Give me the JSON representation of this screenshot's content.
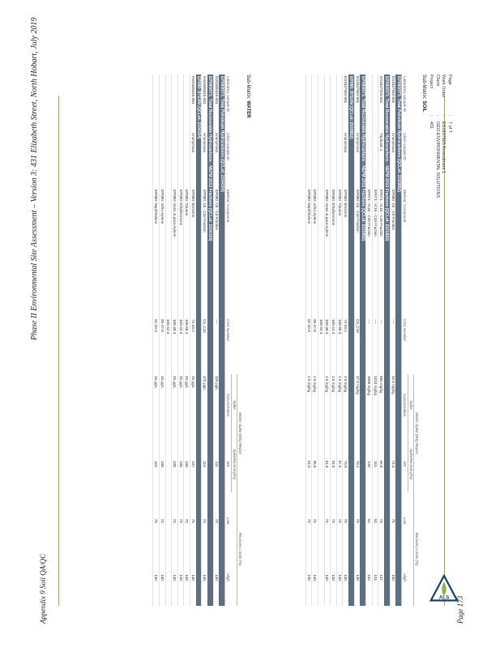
{
  "doc": {
    "header": "Phase II Environmental Site Assessment – Version 3: 431 Elizabeth Street, North Hobart, July 2019",
    "appendix": "Appendix 9 Soil QA/QC",
    "page_label": "Page 173"
  },
  "meta": [
    {
      "k": "Page",
      "v": "7 of 7"
    },
    {
      "k": "Work Order",
      "v": "ES1837926 Amendment 1"
    },
    {
      "k": "Client",
      "v": "GEO-ENVIRONMENTAL SOLUTIONS"
    },
    {
      "k": "Project",
      "v": "431"
    }
  ],
  "logo_text": "ALS",
  "soil": {
    "submatrix_label": "Sub-Matrix:",
    "submatrix_value": "SOIL",
    "head_top": {
      "ms": "Matrix Spike (MS) Report",
      "spike": "Spike",
      "sr": "SpikeRecovery(%)",
      "rl": "Recovery Limits (%)"
    },
    "head": [
      "Laboratory sample ID",
      "Client sample ID",
      "Method: Compound",
      "CAS Number",
      "Concentration",
      "MS",
      "Low",
      "High"
    ],
    "rows": [
      {
        "type": "group",
        "text": "EP080/071: Total Petroleum Hydrocarbons  (QCLot: 2103852)"
      },
      {
        "type": "row",
        "c": [
          "ES1837504-001",
          "Anonymous",
          "EP080: C6 - C9 Fraction",
          "----",
          "32.5 mg/kg",
          "74.3",
          "70",
          "130"
        ]
      },
      {
        "type": "group",
        "text": "EP080/071: Total Recoverable Hydrocarbons - NEPM 2013 Fractions  (QCLot: 2101822)"
      },
      {
        "type": "row",
        "c": [
          "ES1837926-001",
          "Triplicate 1",
          "EP071: >C10 - C16 Fraction",
          "----",
          "860 mg/kg",
          "94.8",
          "73",
          "137"
        ]
      },
      {
        "type": "row",
        "c": [
          "",
          "",
          "EP071: >C16 - C34 Fraction",
          "----",
          "3223 mg/kg",
          "115",
          "53",
          "131"
        ]
      },
      {
        "type": "row",
        "c": [
          "",
          "",
          "EP071: >C34 - C40 Fraction",
          "----",
          "1058 mg/kg",
          "128",
          "52",
          "132"
        ]
      },
      {
        "type": "group",
        "text": "EP080/071: Total Recoverable Hydrocarbons - NEPM 2013 Fractions  (QCLot: 2103852)"
      },
      {
        "type": "row",
        "c": [
          "ES1837504-001",
          "Anonymous",
          "EP080: C6 - C10 Fraction",
          "C6_C10",
          "37.5 mg/kg",
          "78.2",
          "70",
          "130"
        ]
      },
      {
        "type": "group",
        "text": "EP080: BTEXN  (QCLot: 2103852)"
      },
      {
        "type": "row",
        "c": [
          "ES1837504-001",
          "Anonymous",
          "EP080: Benzene",
          "71-43-2",
          "2.5 mg/kg",
          "78.9",
          "70",
          "130"
        ]
      },
      {
        "type": "row",
        "c": [
          "",
          "",
          "EP080: Toluene",
          "108-88-3",
          "2.5 mg/kg",
          "87.0",
          "70",
          "130"
        ]
      },
      {
        "type": "row",
        "c": [
          "",
          "",
          "EP080: Ethylbenzene",
          "100-41-4",
          "2.5 mg/kg",
          "91.0",
          "70",
          "130"
        ]
      },
      {
        "type": "row",
        "c": [
          "",
          "",
          "EP080: meta- & para-Xylene",
          "108-38-3",
          "2.5 mg/kg",
          "91.8",
          "70",
          "130"
        ]
      },
      {
        "type": "row",
        "c": [
          "",
          "",
          "",
          "106-42-3",
          "",
          "",
          "",
          ""
        ]
      },
      {
        "type": "row",
        "c": [
          "",
          "",
          "EP080: ortho-Xylene",
          "95-47-6",
          "2.5 mg/kg",
          "95.8",
          "70",
          "130"
        ]
      },
      {
        "type": "row",
        "c": [
          "",
          "",
          "EP080: Naphthalene",
          "91-20-3",
          "2.5 mg/kg",
          "91.0",
          "70",
          "130"
        ]
      }
    ]
  },
  "water": {
    "submatrix_label": "Sub-Matrix:",
    "submatrix_value": "WATER",
    "head_top": {
      "ms": "Matrix Spike (MS) Report",
      "spike": "Spike",
      "sr": "SpikeRecovery(%)",
      "rl": "Recovery Limits (%)"
    },
    "head": [
      "Laboratory sample ID",
      "Client sample ID",
      "Method: Compound",
      "CAS Number",
      "Concentration",
      "MS",
      "Low",
      "High"
    ],
    "rows": [
      {
        "type": "group",
        "text": "EP080/071: Total Petroleum Hydrocarbons  (QCLot: 2104154)"
      },
      {
        "type": "row",
        "c": [
          "EW1805315-001",
          "Anonymous",
          "EP080: C6 - C9 Fraction",
          "----",
          "325 µg/L",
          "111",
          "70",
          "130"
        ]
      },
      {
        "type": "group",
        "text": "EP080/071: Total Recoverable Hydrocarbons - NEPM 2013 Fractions  (QCLot: 2104154)"
      },
      {
        "type": "row",
        "c": [
          "EW1805315-001",
          "Anonymous",
          "EP080: C6 - C10 Fraction",
          "C6_C10",
          "375 µg/L",
          "116",
          "70",
          "130"
        ]
      },
      {
        "type": "group",
        "text": "EP080: BTEXN  (QCLot: 2104154)"
      },
      {
        "type": "row",
        "c": [
          "EW1805315-001",
          "Anonymous",
          "EP080: Benzene",
          "71-43-2",
          "25 µg/L",
          "107",
          "70",
          "130"
        ]
      },
      {
        "type": "row",
        "c": [
          "",
          "",
          "EP080: Toluene",
          "108-88-3",
          "25 µg/L",
          "106",
          "70",
          "130"
        ]
      },
      {
        "type": "row",
        "c": [
          "",
          "",
          "EP080: Ethylbenzene",
          "100-41-4",
          "25 µg/L",
          "106",
          "70",
          "130"
        ]
      },
      {
        "type": "row",
        "c": [
          "",
          "",
          "EP080: meta- & para-Xylene",
          "108-38-3",
          "25 µg/L",
          "108",
          "70",
          "130"
        ]
      },
      {
        "type": "row",
        "c": [
          "",
          "",
          "",
          "106-42-3",
          "",
          "",
          "",
          ""
        ]
      },
      {
        "type": "row",
        "c": [
          "",
          "",
          "EP080: ortho-Xylene",
          "95-47-6",
          "25 µg/L",
          "108",
          "70",
          "130"
        ]
      },
      {
        "type": "row",
        "c": [
          "",
          "",
          "EP080: Naphthalene",
          "91-20-3",
          "25 µg/L",
          "118",
          "70",
          "130"
        ]
      }
    ]
  }
}
